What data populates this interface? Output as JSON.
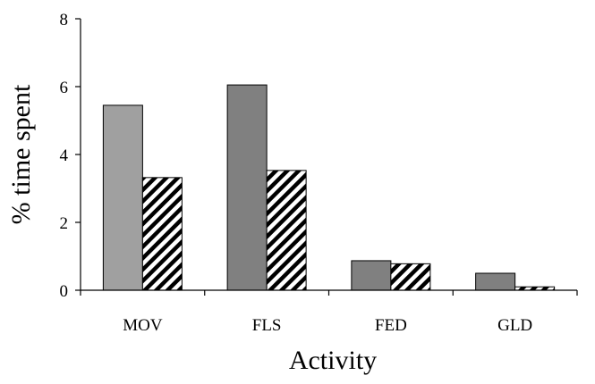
{
  "chart_data": {
    "type": "bar",
    "title": "",
    "xlabel": "Activity",
    "ylabel": "% time spent",
    "ylim": [
      0,
      8
    ],
    "yticks": [
      0,
      2,
      4,
      6,
      8
    ],
    "grid": false,
    "legend": "none",
    "categories": [
      "MOV",
      "FLS",
      "FED",
      "GLD"
    ],
    "series": [
      {
        "values": [
          5.45,
          6.05,
          0.87,
          0.5
        ],
        "color": "#808080",
        "pattern": "solid"
      },
      {
        "values": [
          3.32,
          3.53,
          0.78,
          0.1
        ],
        "color": "#000000",
        "pattern": "diagonal-hatch"
      }
    ]
  }
}
